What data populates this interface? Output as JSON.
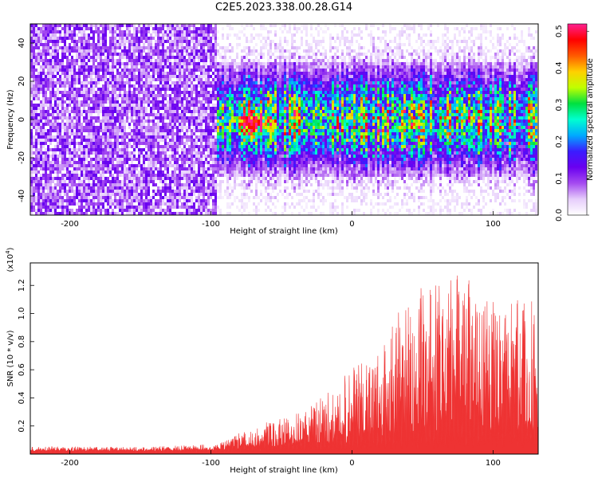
{
  "title": "C2E5.2023.338.00.28.G14",
  "chart_data": [
    {
      "type": "heatmap",
      "xlabel": "Height of straight line (km)",
      "ylabel": "Frequency (Hz)",
      "xlim": [
        -228,
        132
      ],
      "ylim": [
        -50,
        50
      ],
      "xticks": [
        -200,
        -100,
        0,
        100
      ],
      "yticks": [
        -40,
        -20,
        0,
        20,
        40
      ],
      "grid": false,
      "colorbar": {
        "label": "Normalized spectral amplitude",
        "range": [
          0.0,
          0.52
        ],
        "ticks": [
          "0.0",
          "0.1",
          "0.2",
          "0.3",
          "0.4",
          "0.5"
        ],
        "tick_values": [
          0.0,
          0.1,
          0.2,
          0.3,
          0.4,
          0.5
        ],
        "palette": [
          "#ffffff",
          "#e6cdfb",
          "#a54bf0",
          "#6a00f0",
          "#3b1cff",
          "#00aaff",
          "#00ffd0",
          "#00e040",
          "#c0ff00",
          "#ffd000",
          "#ff5a00",
          "#ff0000",
          "#ff2090"
        ]
      },
      "features": {
        "diffuse_band_x": [
          -228,
          -95
        ],
        "diffuse_level": 0.08,
        "signal_start_x": -95,
        "signal_center_freq": 0,
        "signal_halfwidth_hz": 15,
        "peak_x": -70,
        "peak_freq": -2,
        "peak_value": 0.52
      }
    },
    {
      "type": "area",
      "xlabel": "Height of straight line (km)",
      "ylabel": "SNR (10 * v/v)",
      "yscale_label": "(x10",
      "yscale_exp": "4",
      "xlim": [
        -228,
        132
      ],
      "ylim": [
        0,
        13600
      ],
      "xticks": [
        -200,
        -100,
        0,
        100
      ],
      "yticks": [
        2000,
        4000,
        6000,
        8000,
        10000,
        12000
      ],
      "ytick_labels": [
        "0.2",
        "0.4",
        "0.6",
        "0.8",
        "1.0",
        "1.2"
      ],
      "color": "#ee3333",
      "grid": false,
      "x": [
        -228,
        -200,
        -150,
        -100,
        -90,
        -80,
        -70,
        -60,
        -50,
        -40,
        -30,
        -20,
        -10,
        0,
        10,
        20,
        30,
        40,
        50,
        60,
        70,
        80,
        90,
        100,
        110,
        120,
        132
      ],
      "y_max": [
        500,
        550,
        500,
        700,
        900,
        1500,
        1800,
        2300,
        2600,
        3000,
        3400,
        4200,
        4800,
        6500,
        6800,
        8200,
        10000,
        10500,
        12200,
        12000,
        12400,
        13600,
        12500,
        11000,
        10200,
        12800,
        9800
      ],
      "y_min": [
        200,
        200,
        200,
        250,
        300,
        400,
        450,
        500,
        550,
        600,
        600,
        650,
        700,
        800,
        900,
        1000,
        1100,
        1200,
        1300,
        1400,
        1400,
        1500,
        1500,
        1500,
        1500,
        1500,
        1500
      ]
    }
  ]
}
